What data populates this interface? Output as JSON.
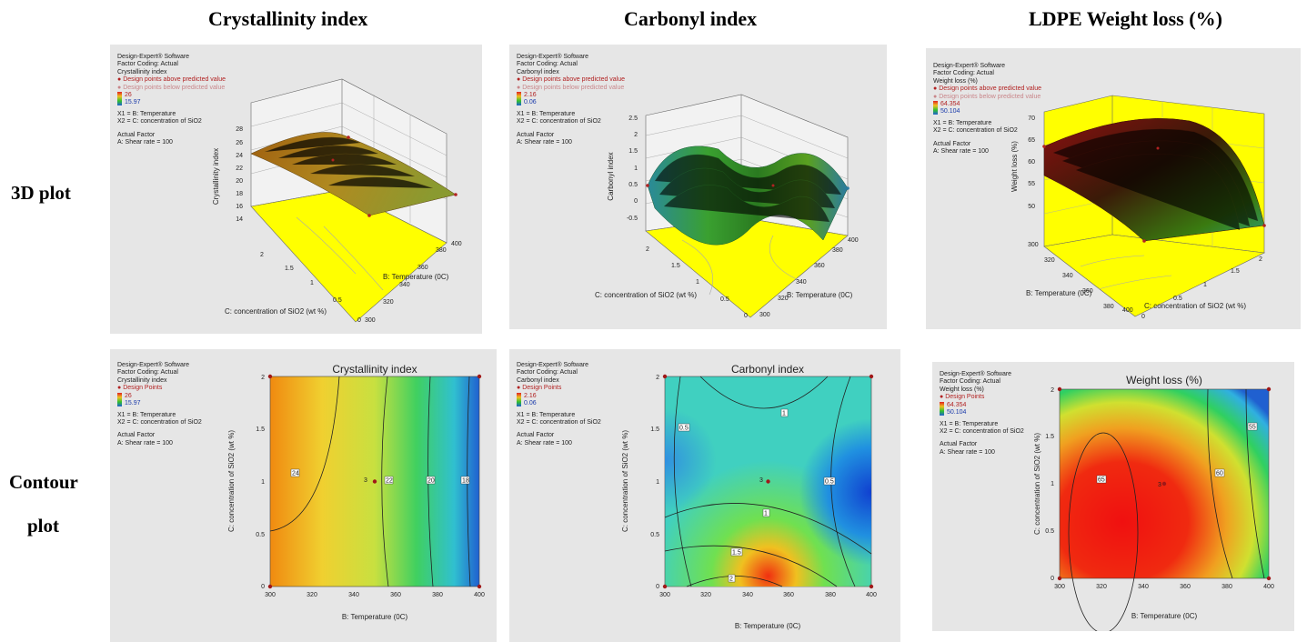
{
  "columns": [
    {
      "title": "Crystallinity index"
    },
    {
      "title": "Carbonyl index"
    },
    {
      "title": "LDPE Weight loss (%)"
    }
  ],
  "rows": [
    {
      "label": "3D plot"
    },
    {
      "label_line1": "Contour",
      "label_line2": "plot"
    }
  ],
  "panels_3d": [
    {
      "software": "Design-Expert® Software",
      "coding": "Factor Coding: Actual",
      "response": "Crystallinity index",
      "above": "Design points above predicted value",
      "below": "Design points below predicted value",
      "max": "26",
      "min": "15.97",
      "x1": "X1 = B: Temperature",
      "x2": "X2 = C: concentration of SiO2",
      "actual": "Actual Factor",
      "shear": "A: Shear rate = 100"
    },
    {
      "software": "Design-Expert® Software",
      "coding": "Factor Coding: Actual",
      "response": "Carbonyl index",
      "above": "Design points above predicted value",
      "below": "Design points below predicted value",
      "max": "2.16",
      "min": "0.06",
      "x1": "X1 = B: Temperature",
      "x2": "X2 = C: concentration of SiO2",
      "actual": "Actual Factor",
      "shear": "A: Shear rate = 100"
    },
    {
      "software": "Design-Expert® Software",
      "coding": "Factor Coding: Actual",
      "response": "Weight loss (%)",
      "above": "Design points above predicted value",
      "below": "Design points below predicted value",
      "max": "64.354",
      "min": "50.104",
      "x1": "X1 = B: Temperature",
      "x2": "X2 = C: concentration of SiO2",
      "actual": "Actual Factor",
      "shear": "A: Shear rate = 100"
    }
  ],
  "panels_contour": [
    {
      "software": "Design-Expert® Software",
      "coding": "Factor Coding: Actual",
      "response": "Crystallinity index",
      "points": "Design Points",
      "max": "26",
      "min": "15.97",
      "x1": "X1 = B: Temperature",
      "x2": "X2 = C: concentration of SiO2",
      "actual": "Actual Factor",
      "shear": "A: Shear rate = 100"
    },
    {
      "software": "Design-Expert® Software",
      "coding": "Factor Coding: Actual",
      "response": "Carbonyl index",
      "points": "Design Points",
      "max": "2.16",
      "min": "0.06",
      "x1": "X1 = B: Temperature",
      "x2": "X2 = C: concentration of SiO2",
      "actual": "Actual Factor",
      "shear": "A: Shear rate = 100"
    },
    {
      "software": "Design-Expert® Software",
      "coding": "Factor Coding: Actual",
      "response": "Weight loss (%)",
      "points": "Design Points",
      "max": "64.354",
      "min": "50.104",
      "x1": "X1 = B: Temperature",
      "x2": "X2 = C: concentration of SiO2",
      "actual": "Actual Factor",
      "shear": "A: Shear rate = 100"
    }
  ],
  "colors": {
    "red": "#e02020",
    "yellow": "#f0d020",
    "green": "#30c030",
    "blue": "#2060d0",
    "floor": "#ffff00",
    "panel": "#e6e6e6"
  },
  "chart_data": [
    {
      "type": "surface",
      "title": "",
      "zlabel": "Crystallinity index",
      "xlabel": "B: Temperature (0C)",
      "ylabel": "C: concentration of SiO2 (wt %)",
      "zticks": [
        "14",
        "16",
        "18",
        "20",
        "22",
        "24",
        "26",
        "28"
      ],
      "xticks": [
        "300",
        "320",
        "340",
        "360",
        "380",
        "400"
      ],
      "yticks": [
        "0",
        "0.5",
        "1",
        "1.5",
        "2"
      ],
      "xlim": [
        300,
        400
      ],
      "ylim": [
        0,
        2
      ],
      "zlim": [
        14,
        28
      ]
    },
    {
      "type": "surface",
      "title": "",
      "zlabel": "Carbonyl index",
      "xlabel": "B: Temperature (0C)",
      "ylabel": "C: concentration of SiO2 (wt %)",
      "zticks": [
        "-0.5",
        "0",
        "0.5",
        "1",
        "1.5",
        "2",
        "2.5"
      ],
      "xticks": [
        "300",
        "320",
        "340",
        "360",
        "380",
        "400"
      ],
      "yticks": [
        "0",
        "0.5",
        "1",
        "1.5",
        "2"
      ],
      "xlim": [
        300,
        400
      ],
      "ylim": [
        0,
        2
      ],
      "zlim": [
        -0.5,
        2.5
      ]
    },
    {
      "type": "surface",
      "title": "",
      "zlabel": "Weight loss (%)",
      "xlabel": "B: Temperature (0C)",
      "ylabel": "C: concentration of SiO2 (wt %)",
      "zticks": [
        "50",
        "55",
        "60",
        "65",
        "70"
      ],
      "xticks": [
        "300",
        "320",
        "340",
        "360",
        "380",
        "400"
      ],
      "yticks": [
        "0",
        "0.5",
        "1",
        "1.5",
        "2"
      ],
      "xlim": [
        300,
        400
      ],
      "ylim": [
        0,
        2
      ],
      "zlim": [
        50,
        70
      ]
    },
    {
      "type": "contour",
      "title": "Crystallinity index",
      "xlabel": "B: Temperature (0C)",
      "ylabel": "C: concentration of SiO2 (wt %)",
      "xticks": [
        "300",
        "320",
        "340",
        "360",
        "380",
        "400"
      ],
      "yticks": [
        "0",
        "0.5",
        "1",
        "1.5",
        "2"
      ],
      "xlim": [
        300,
        400
      ],
      "ylim": [
        0,
        2
      ],
      "contour_labels": [
        "24",
        "22",
        "20",
        "18"
      ],
      "center_label": "3",
      "design_points": [
        [
          300,
          0
        ],
        [
          300,
          2
        ],
        [
          400,
          0
        ],
        [
          400,
          2
        ],
        [
          350,
          1
        ]
      ]
    },
    {
      "type": "contour",
      "title": "Carbonyl index",
      "xlabel": "B: Temperature (0C)",
      "ylabel": "C: concentration of SiO2 (wt %)",
      "xticks": [
        "300",
        "320",
        "340",
        "360",
        "380",
        "400"
      ],
      "yticks": [
        "0",
        "0.5",
        "1",
        "1.5",
        "2"
      ],
      "xlim": [
        300,
        400
      ],
      "ylim": [
        0,
        2
      ],
      "contour_labels": [
        "1",
        "0.5",
        "1",
        "0.5",
        "1.5",
        "2"
      ],
      "center_label": "3",
      "design_points": [
        [
          300,
          0
        ],
        [
          300,
          2
        ],
        [
          400,
          0
        ],
        [
          400,
          2
        ],
        [
          350,
          1
        ]
      ]
    },
    {
      "type": "contour",
      "title": "Weight loss (%)",
      "xlabel": "B: Temperature (0C)",
      "ylabel": "C: concentration of SiO2 (wt %)",
      "xticks": [
        "300",
        "320",
        "340",
        "360",
        "380",
        "400"
      ],
      "yticks": [
        "0",
        "0.5",
        "1",
        "1.5",
        "2"
      ],
      "xlim": [
        300,
        400
      ],
      "ylim": [
        0,
        2
      ],
      "contour_labels": [
        "65",
        "60",
        "55"
      ],
      "center_label": "3",
      "design_points": [
        [
          300,
          0
        ],
        [
          300,
          2
        ],
        [
          400,
          0
        ],
        [
          400,
          2
        ],
        [
          350,
          1
        ]
      ]
    }
  ]
}
